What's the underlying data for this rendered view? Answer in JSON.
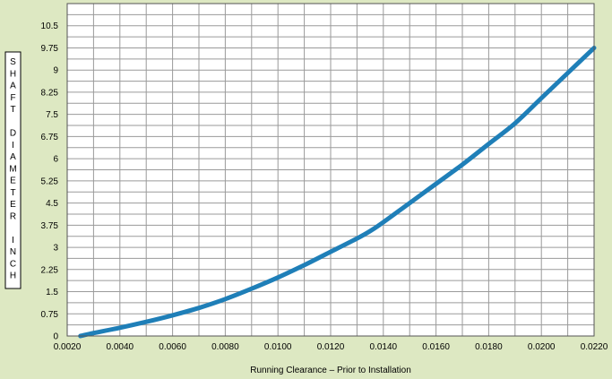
{
  "chart_data": {
    "type": "line",
    "title": "",
    "xlabel": "Running Clearance – Prior to Installation",
    "ylabel": "SHAFT DIAMETER INCH",
    "ylabel_letters": [
      "S",
      "H",
      "A",
      "F",
      "T",
      "",
      "D",
      "I",
      "A",
      "M",
      "E",
      "T",
      "E",
      "R",
      "",
      "I",
      "N",
      "C",
      "H"
    ],
    "xlim": [
      0.002,
      0.022
    ],
    "ylim": [
      0,
      11.25
    ],
    "x_ticks": [
      0.002,
      0.004,
      0.006,
      0.008,
      0.01,
      0.012,
      0.014,
      0.016,
      0.018,
      0.02,
      0.022
    ],
    "x_tick_labels": [
      "0.0020",
      "0.0040",
      "0.0060",
      "0.0080",
      "0.0100",
      "0.0120",
      "0.0140",
      "0.0160",
      "0.0180",
      "0.0200",
      "0.0220"
    ],
    "y_ticks": [
      0,
      0.75,
      1.5,
      2.25,
      3,
      3.75,
      4.5,
      5.25,
      6,
      6.75,
      7.5,
      8.25,
      9,
      9.75,
      10.5
    ],
    "y_tick_labels": [
      "0",
      "0.75",
      "1.5",
      "2.25",
      "3",
      "3.75",
      "4.5",
      "5.25",
      "6",
      "6.75",
      "7.5",
      "8.25",
      "9",
      "9.75",
      "10.5"
    ],
    "grid": true,
    "series": [
      {
        "color": "#1f7fb8",
        "x": [
          0.0025,
          0.003,
          0.004,
          0.005,
          0.006,
          0.007,
          0.008,
          0.009,
          0.01,
          0.011,
          0.012,
          0.013,
          0.0135,
          0.014,
          0.015,
          0.016,
          0.017,
          0.018,
          0.019,
          0.02,
          0.021,
          0.022
        ],
        "y": [
          0.0,
          0.1,
          0.28,
          0.48,
          0.7,
          0.95,
          1.25,
          1.6,
          1.98,
          2.4,
          2.85,
          3.3,
          3.55,
          3.85,
          4.5,
          5.15,
          5.8,
          6.5,
          7.2,
          8.05,
          8.9,
          9.75
        ]
      }
    ]
  }
}
